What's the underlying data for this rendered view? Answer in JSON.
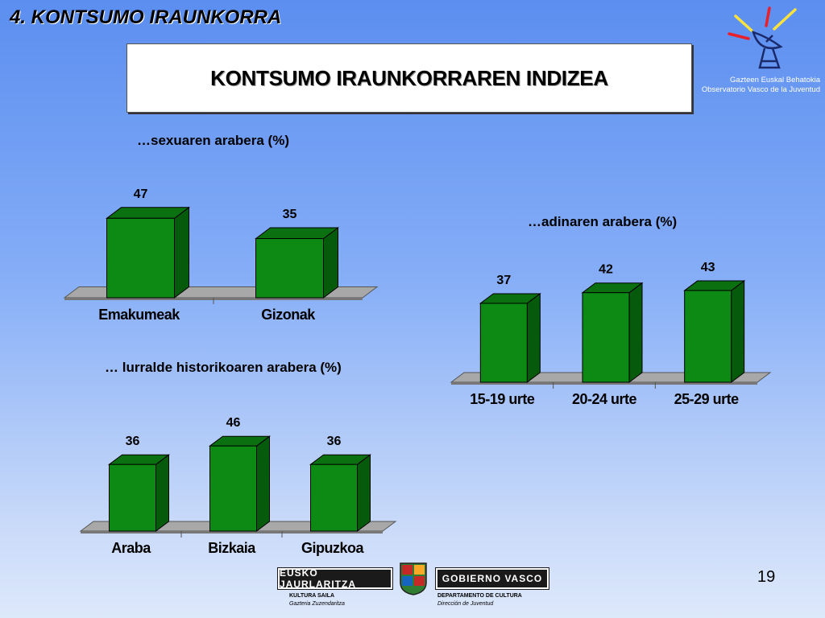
{
  "section": {
    "title": "4. KONTSUMO IRAUNKORRA"
  },
  "header": {
    "title": "KONTSUMO IRAUNKORRAREN INDIZEA"
  },
  "logo": {
    "line1": "Gazteen Euskal Behatokia",
    "line2": "Observatorio Vasco de la Juventud"
  },
  "page": {
    "number": "19"
  },
  "footer": {
    "left_banner": "EUSKO JAURLARITZA",
    "right_banner": "GOBIERNO VASCO",
    "left_sub1": "KULTURA SAILA",
    "left_sub2": "Gazteria Zuzendaritza",
    "right_sub1": "DEPARTAMENTO DE CULTURA",
    "right_sub2": "Dirección de Juventud"
  },
  "colors": {
    "bar_front": "#0c8a14",
    "bar_side": "#065a0b",
    "bar_top": "#0a7010",
    "floor": "#a8a8a8"
  },
  "chart_data": [
    {
      "type": "bar",
      "title": "…sexuaren arabera (%)",
      "categories": [
        "Emakumeak",
        "Gizonak"
      ],
      "values": [
        47,
        35
      ],
      "data_labels": [
        "47",
        "35"
      ],
      "ylim": [
        0,
        50
      ],
      "grid": false,
      "legend": "none"
    },
    {
      "type": "bar",
      "title": "…adinaren arabera (%)",
      "categories": [
        "15-19 urte",
        "20-24 urte",
        "25-29 urte"
      ],
      "values": [
        37,
        42,
        43
      ],
      "data_labels": [
        "37",
        "42",
        "43"
      ],
      "ylim": [
        0,
        50
      ],
      "grid": false,
      "legend": "none"
    },
    {
      "type": "bar",
      "title": "… lurralde historikoaren arabera (%)",
      "categories": [
        "Araba",
        "Bizkaia",
        "Gipuzkoa"
      ],
      "values": [
        36,
        46,
        36
      ],
      "data_labels": [
        "36",
        "46",
        "36"
      ],
      "ylim": [
        0,
        50
      ],
      "grid": false,
      "legend": "none"
    }
  ]
}
